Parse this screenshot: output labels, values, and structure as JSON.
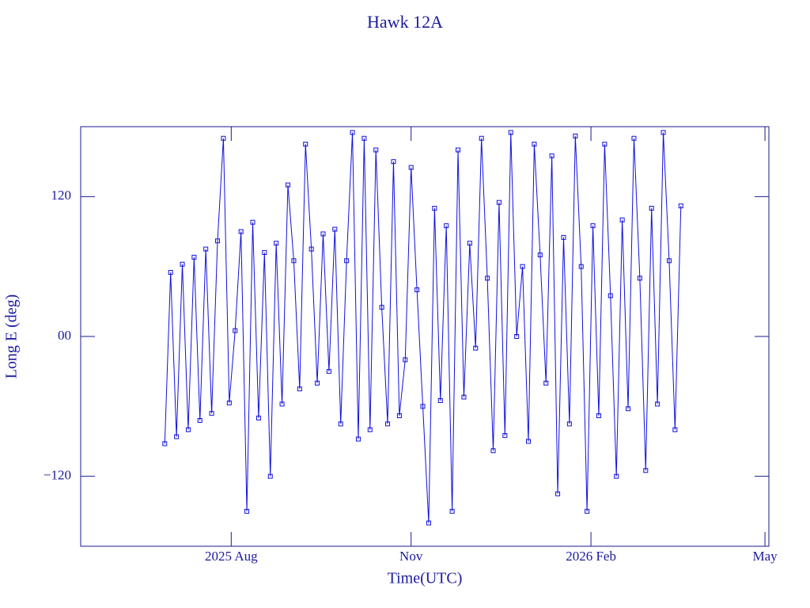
{
  "chart_data": {
    "type": "line",
    "title": "Hawk 12A",
    "x_label": "Time(UTC)",
    "y_label": "Long E (deg)",
    "xlim": [
      -77,
      275
    ],
    "xticks": [
      {
        "value": 0,
        "label": "2025 Aug"
      },
      {
        "value": 92,
        "label": "Nov"
      },
      {
        "value": 184,
        "label": "2026 Feb"
      },
      {
        "value": 273,
        "label": "May"
      }
    ],
    "ylim": [
      -180,
      180
    ],
    "yticks": [
      {
        "value": -120,
        "label": "−120"
      },
      {
        "value": 0,
        "label": "00"
      },
      120
    ],
    "x": [
      -34,
      -31,
      -28,
      -25,
      -22,
      -19,
      -16,
      -13,
      -10,
      -7,
      -4,
      -1,
      2,
      5,
      8,
      11,
      14,
      17,
      20,
      23,
      26,
      29,
      32,
      35,
      38,
      41,
      44,
      47,
      50,
      53,
      56,
      59,
      62,
      65,
      68,
      71,
      74,
      77,
      80,
      83,
      86,
      89,
      92,
      95,
      98,
      101,
      104,
      107,
      110,
      113,
      116,
      119,
      122,
      125,
      128,
      131,
      134,
      137,
      140,
      143,
      146,
      149,
      152,
      155,
      158,
      161,
      164,
      167,
      170,
      173,
      176,
      179,
      182,
      185,
      188,
      191,
      194,
      197,
      200,
      203,
      206,
      209,
      212,
      215,
      218,
      221,
      224,
      227,
      230
    ],
    "series": [
      {
        "color": "#1010e0",
        "values": [
          -92,
          55,
          -86,
          62,
          -80,
          68,
          -72,
          75,
          -66,
          82,
          170,
          -57,
          5,
          90,
          -150,
          98,
          -70,
          72,
          -120,
          80,
          -58,
          130,
          65,
          -45,
          165,
          75,
          -40,
          88,
          -30,
          92,
          -75,
          65,
          175,
          -88,
          170,
          -80,
          160,
          25,
          -75,
          150,
          -68,
          -20,
          145,
          40,
          -60,
          -160,
          110,
          -55,
          95,
          -150,
          160,
          -52,
          80,
          -10,
          170,
          50,
          -98,
          115,
          -85,
          175,
          0,
          60,
          -90,
          165,
          70,
          -40,
          155,
          -135,
          85,
          -75,
          172,
          60,
          -150,
          95,
          -68,
          165,
          35,
          -120,
          100,
          -62,
          170,
          50,
          -115,
          110,
          -58,
          175,
          65,
          -80,
          112
        ]
      }
    ]
  }
}
